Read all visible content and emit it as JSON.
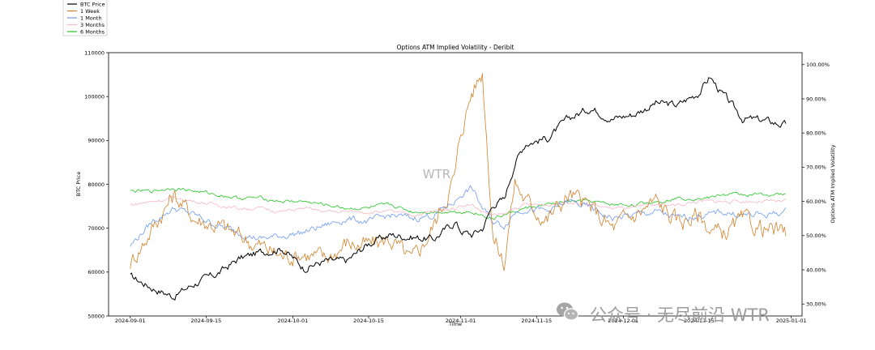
{
  "chart_data": {
    "type": "line",
    "title": "Options ATM Implied Volatility - Deribit",
    "xlabel": "Time",
    "ylabel_left": "BTC Price",
    "ylabel_right": "Options ATM Implied Volatility",
    "x_range": [
      "2024-08-28",
      "2025-01-03"
    ],
    "x_ticks": [
      "2024-09-01",
      "2024-09-15",
      "2024-10-01",
      "2024-10-15",
      "2024-11-01",
      "2024-11-15",
      "2024-12-01",
      "2024-12-15",
      "2025-01-01"
    ],
    "ylim_left": [
      50000,
      110000
    ],
    "yticks_left": [
      "50000",
      "60000",
      "70000",
      "80000",
      "90000",
      "100000",
      "110000"
    ],
    "ylim_right": [
      0.265,
      1.035
    ],
    "yticks_right": [
      "30.00%",
      "40.00%",
      "50.00%",
      "60.00%",
      "70.00%",
      "80.00%",
      "90.00%",
      "100.00%"
    ],
    "yticks_right_values": [
      0.3,
      0.4,
      0.5,
      0.6,
      0.7,
      0.8,
      0.9,
      1.0
    ],
    "legend_position": "top-left (outside plot)",
    "annotation": "WTR",
    "x": [
      "2024-09-01",
      "2024-09-05",
      "2024-09-09",
      "2024-09-13",
      "2024-09-17",
      "2024-09-21",
      "2024-09-25",
      "2024-09-29",
      "2024-10-03",
      "2024-10-07",
      "2024-10-11",
      "2024-10-15",
      "2024-10-19",
      "2024-10-23",
      "2024-10-27",
      "2024-10-31",
      "2024-11-01",
      "2024-11-03",
      "2024-11-05",
      "2024-11-07",
      "2024-11-09",
      "2024-11-11",
      "2024-11-13",
      "2024-11-17",
      "2024-11-21",
      "2024-11-25",
      "2024-11-29",
      "2024-12-03",
      "2024-12-07",
      "2024-12-11",
      "2024-12-15",
      "2024-12-17",
      "2024-12-19",
      "2024-12-23",
      "2024-12-27",
      "2024-12-31"
    ],
    "series": [
      {
        "name": "BTC Price",
        "axis": "left",
        "color": "#000000",
        "values": [
          59000,
          56500,
          54500,
          57500,
          59500,
          63000,
          64500,
          65500,
          61000,
          62500,
          62500,
          66500,
          68500,
          68000,
          67500,
          71500,
          69500,
          68500,
          70000,
          75500,
          76500,
          85000,
          89500,
          90500,
          95000,
          97500,
          95000,
          96000,
          98500,
          98000,
          101000,
          104500,
          101000,
          95000,
          94500,
          93500
        ]
      },
      {
        "name": "1 Week",
        "axis": "left",
        "color": "#d2822b",
        "values": [
          0.42,
          0.52,
          0.62,
          0.55,
          0.53,
          0.5,
          0.47,
          0.44,
          0.45,
          0.43,
          0.48,
          0.47,
          0.49,
          0.42,
          0.53,
          0.68,
          0.8,
          0.92,
          0.98,
          0.5,
          0.42,
          0.66,
          0.6,
          0.55,
          0.62,
          0.58,
          0.52,
          0.56,
          0.6,
          0.54,
          0.56,
          0.52,
          0.5,
          0.54,
          0.52,
          0.5
        ]
      },
      {
        "name": "1 Month",
        "axis": "left",
        "color": "#6e9af0",
        "values": [
          0.47,
          0.54,
          0.58,
          0.56,
          0.53,
          0.51,
          0.49,
          0.5,
          0.51,
          0.53,
          0.55,
          0.54,
          0.56,
          0.55,
          0.56,
          0.6,
          0.62,
          0.64,
          0.58,
          0.54,
          0.53,
          0.57,
          0.58,
          0.57,
          0.6,
          0.58,
          0.55,
          0.56,
          0.57,
          0.55,
          0.56,
          0.56,
          0.57,
          0.56,
          0.56,
          0.57
        ]
      },
      {
        "name": "3 Months",
        "axis": "left",
        "color": "#f5b7c3",
        "values": [
          0.59,
          0.6,
          0.61,
          0.6,
          0.59,
          0.58,
          0.58,
          0.57,
          0.58,
          0.57,
          0.57,
          0.57,
          0.57,
          0.56,
          0.57,
          0.58,
          0.59,
          0.59,
          0.57,
          0.56,
          0.56,
          0.58,
          0.59,
          0.59,
          0.6,
          0.59,
          0.58,
          0.58,
          0.59,
          0.59,
          0.6,
          0.6,
          0.6,
          0.6,
          0.6,
          0.6
        ]
      },
      {
        "name": "6 Months",
        "axis": "left",
        "color": "#22c322",
        "values": [
          0.63,
          0.63,
          0.64,
          0.63,
          0.62,
          0.61,
          0.61,
          0.6,
          0.6,
          0.59,
          0.58,
          0.58,
          0.59,
          0.57,
          0.57,
          0.57,
          0.57,
          0.57,
          0.56,
          0.55,
          0.56,
          0.57,
          0.58,
          0.59,
          0.6,
          0.6,
          0.59,
          0.59,
          0.6,
          0.61,
          0.61,
          0.61,
          0.62,
          0.62,
          0.62,
          0.62
        ]
      }
    ]
  },
  "watermark": {
    "text": "公众号 · 无尽前沿 WTR",
    "icon": "wechat-icon"
  }
}
